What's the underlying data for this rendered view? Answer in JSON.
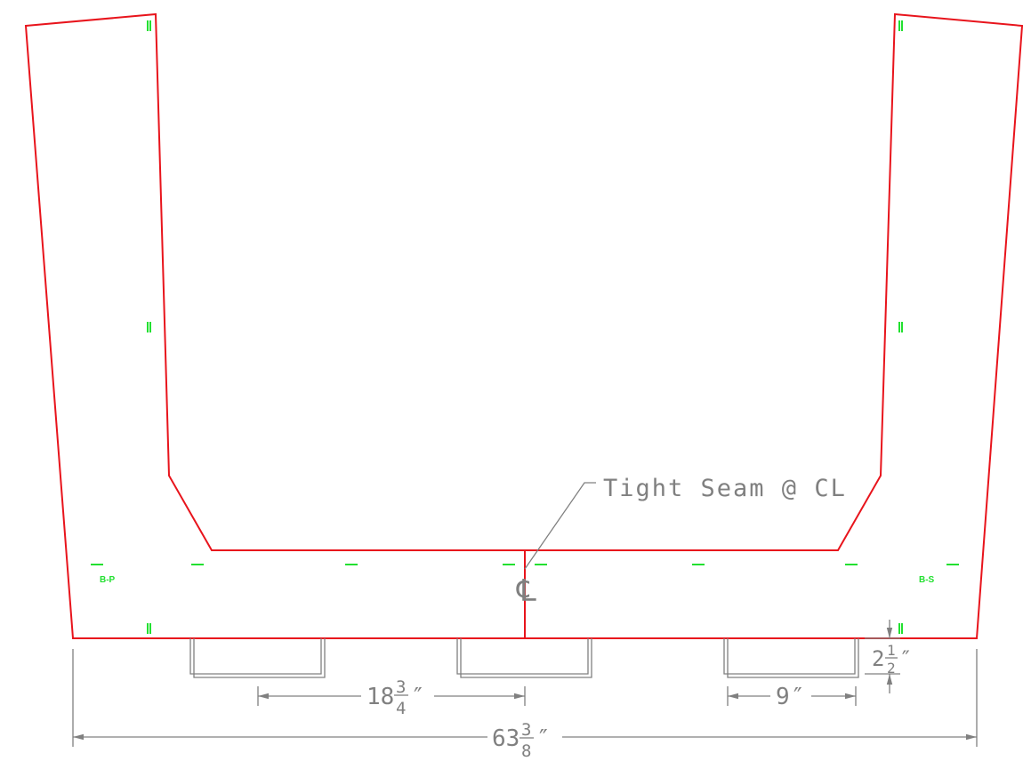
{
  "labels": {
    "seam_note": "Tight Seam @ CL",
    "port_label": "B-P",
    "starboard_label": "B-S",
    "centerline_symbol": "℄"
  },
  "dimensions": {
    "overall": {
      "whole": "63",
      "num": "3",
      "den": "8",
      "unit": "″"
    },
    "half": {
      "whole": "18",
      "num": "3",
      "den": "4",
      "unit": "″"
    },
    "cutout_width": {
      "whole": "9",
      "num": "",
      "den": "",
      "unit": "″"
    },
    "cutout_depth": {
      "whole": "2",
      "num": "1",
      "den": "2",
      "unit": "″"
    }
  },
  "colors": {
    "outline": "#e8141c",
    "dimension": "#808080",
    "marks": "#22e030"
  }
}
